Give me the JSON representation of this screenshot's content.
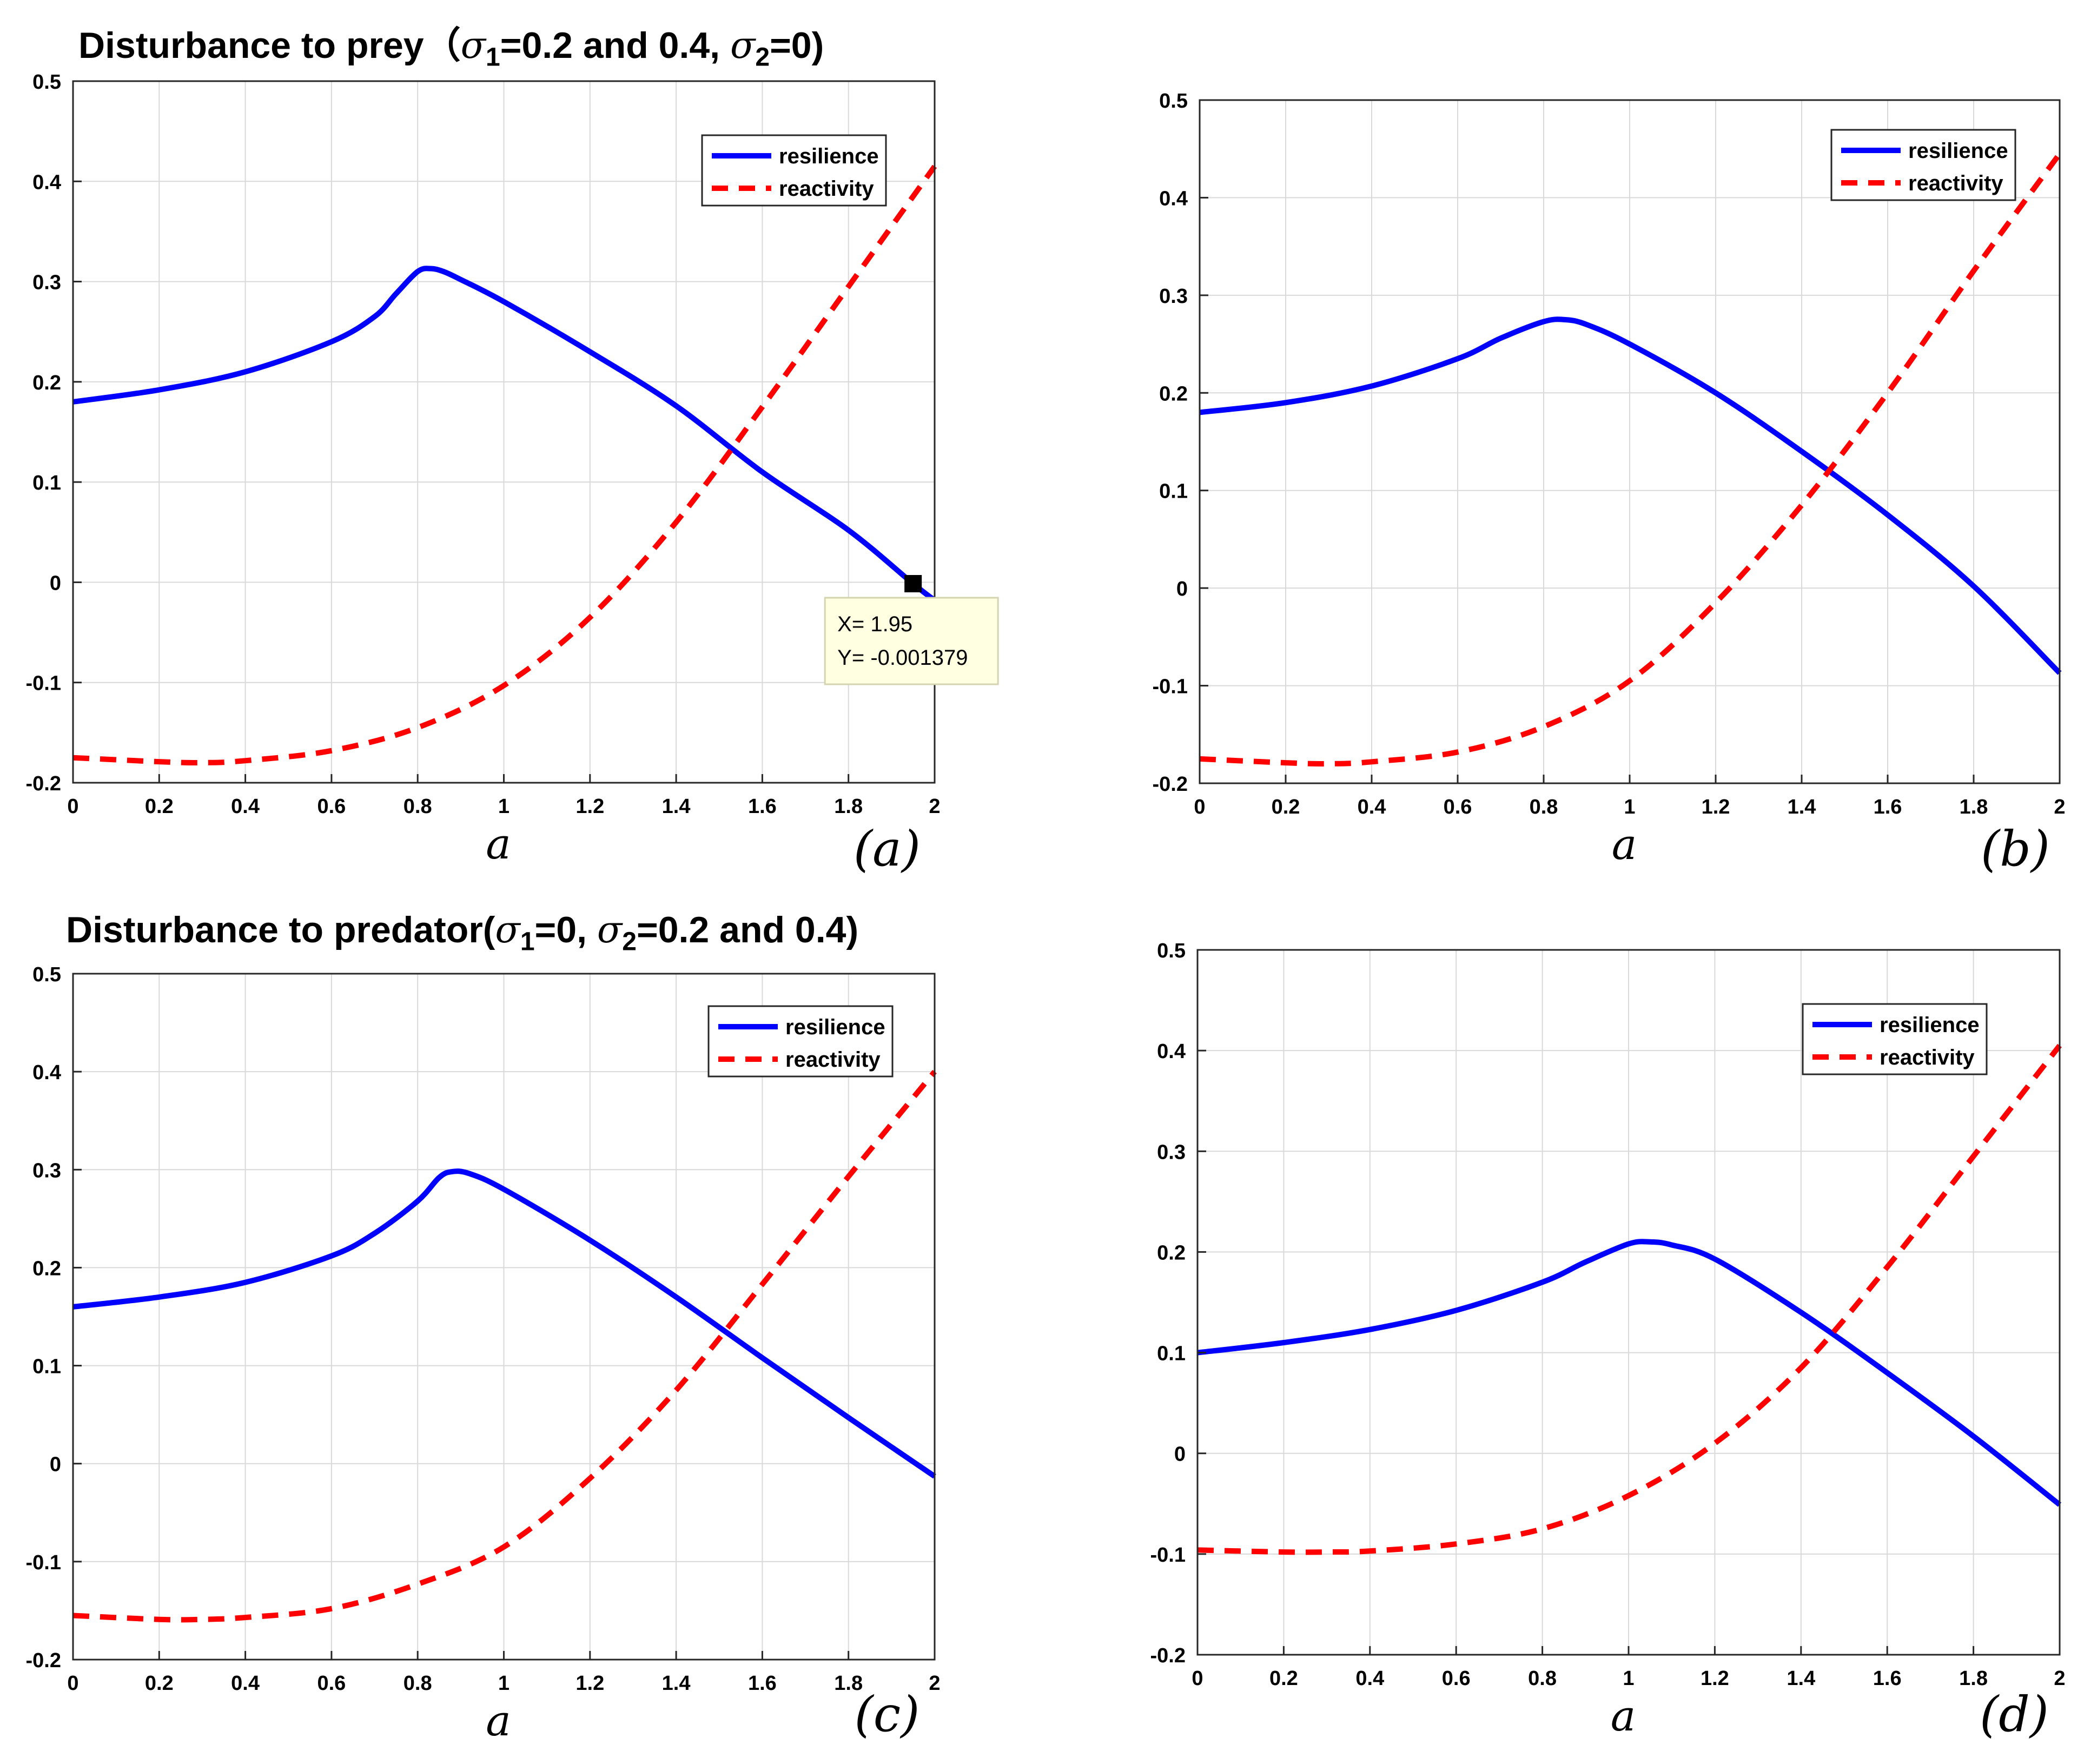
{
  "titles": {
    "prey": {
      "lead": "Disturbance to prey（",
      "sigma1": "1",
      "mid": "=0.2 and 0.4, ",
      "sigma2": "2",
      "tail": "=0)"
    },
    "predator": {
      "lead": "Disturbance to predator(",
      "sigma1": "1",
      "mid": "=0, ",
      "sigma2": "2",
      "tail": "=0.2 and 0.4)"
    },
    "sigma_symbol": "σ"
  },
  "colors": {
    "resilience": "#0000ff",
    "reactivity": "#ff0000",
    "grid": "#d9d9d9",
    "datatip_bg": "#ffffe1"
  },
  "chart_data": [
    {
      "type": "line",
      "panel_label": "(a)",
      "xlabel": "a",
      "ylabel": "",
      "xlim": [
        0,
        2
      ],
      "ylim": [
        -0.2,
        0.5
      ],
      "xticks": [
        "0",
        "0.2",
        "0.4",
        "0.6",
        "0.8",
        "1",
        "1.2",
        "1.4",
        "1.6",
        "1.8",
        "2"
      ],
      "yticks": [
        "-0.2",
        "-0.1",
        "0",
        "0.1",
        "0.2",
        "0.3",
        "0.4",
        "0.5"
      ],
      "legend": {
        "position": "top-right",
        "entries": [
          "resilience",
          "reactivity"
        ]
      },
      "series": [
        {
          "name": "resilience",
          "style": "solid",
          "x": [
            0,
            0.2,
            0.4,
            0.6,
            0.7,
            0.75,
            0.8,
            0.83,
            0.86,
            0.9,
            1.0,
            1.2,
            1.4,
            1.6,
            1.8,
            1.95,
            2.0
          ],
          "y": [
            0.18,
            0.192,
            0.21,
            0.24,
            0.265,
            0.288,
            0.31,
            0.313,
            0.31,
            0.302,
            0.28,
            0.23,
            0.176,
            0.11,
            0.052,
            -0.0014,
            -0.018
          ]
        },
        {
          "name": "reactivity",
          "style": "dashed",
          "x": [
            0,
            0.2,
            0.3,
            0.4,
            0.6,
            0.8,
            1.0,
            1.2,
            1.4,
            1.6,
            1.8,
            2.0
          ],
          "y": [
            -0.175,
            -0.179,
            -0.18,
            -0.178,
            -0.168,
            -0.145,
            -0.103,
            -0.035,
            0.06,
            0.175,
            0.295,
            0.415
          ]
        }
      ],
      "datatip": {
        "x": 1.95,
        "y": -0.001379,
        "line1": "X= 1.95",
        "line2": "Y= -0.001379"
      }
    },
    {
      "type": "line",
      "panel_label": "(b)",
      "xlabel": "a",
      "ylabel": "",
      "xlim": [
        0,
        2
      ],
      "ylim": [
        -0.2,
        0.5
      ],
      "xticks": [
        "0",
        "0.2",
        "0.4",
        "0.6",
        "0.8",
        "1",
        "1.2",
        "1.4",
        "1.6",
        "1.8",
        "2"
      ],
      "yticks": [
        "-0.2",
        "-0.1",
        "0",
        "0.1",
        "0.2",
        "0.3",
        "0.4",
        "0.5"
      ],
      "legend": {
        "position": "top-right",
        "entries": [
          "resilience",
          "reactivity"
        ]
      },
      "series": [
        {
          "name": "resilience",
          "style": "solid",
          "x": [
            0,
            0.2,
            0.4,
            0.6,
            0.7,
            0.8,
            0.85,
            0.9,
            1.0,
            1.2,
            1.4,
            1.6,
            1.8,
            2.0
          ],
          "y": [
            0.18,
            0.19,
            0.207,
            0.235,
            0.256,
            0.273,
            0.275,
            0.27,
            0.25,
            0.2,
            0.14,
            0.075,
            0.002,
            -0.087
          ]
        },
        {
          "name": "reactivity",
          "style": "dashed",
          "x": [
            0,
            0.2,
            0.3,
            0.4,
            0.6,
            0.8,
            1.0,
            1.2,
            1.4,
            1.6,
            1.8,
            2.0
          ],
          "y": [
            -0.175,
            -0.179,
            -0.18,
            -0.178,
            -0.168,
            -0.142,
            -0.095,
            -0.015,
            0.085,
            0.2,
            0.325,
            0.445
          ]
        }
      ]
    },
    {
      "type": "line",
      "panel_label": "(c)",
      "xlabel": "a",
      "ylabel": "",
      "xlim": [
        0,
        2
      ],
      "ylim": [
        -0.2,
        0.5
      ],
      "xticks": [
        "0",
        "0.2",
        "0.4",
        "0.6",
        "0.8",
        "1",
        "1.2",
        "1.4",
        "1.6",
        "1.8",
        "2"
      ],
      "yticks": [
        "-0.2",
        "-0.1",
        "0",
        "0.1",
        "0.2",
        "0.3",
        "0.4",
        "0.5"
      ],
      "legend": {
        "position": "top-right",
        "entries": [
          "resilience",
          "reactivity"
        ]
      },
      "series": [
        {
          "name": "resilience",
          "style": "solid",
          "x": [
            0,
            0.2,
            0.4,
            0.6,
            0.7,
            0.8,
            0.85,
            0.88,
            0.92,
            1.0,
            1.2,
            1.4,
            1.6,
            1.8,
            2.0
          ],
          "y": [
            0.16,
            0.17,
            0.185,
            0.212,
            0.235,
            0.268,
            0.292,
            0.298,
            0.296,
            0.28,
            0.228,
            0.17,
            0.108,
            0.047,
            -0.013
          ]
        },
        {
          "name": "reactivity",
          "style": "dashed",
          "x": [
            0,
            0.2,
            0.3,
            0.4,
            0.6,
            0.8,
            1.0,
            1.2,
            1.4,
            1.6,
            1.8,
            2.0
          ],
          "y": [
            -0.155,
            -0.159,
            -0.159,
            -0.157,
            -0.148,
            -0.123,
            -0.085,
            -0.015,
            0.075,
            0.183,
            0.293,
            0.4
          ]
        }
      ]
    },
    {
      "type": "line",
      "panel_label": "(d)",
      "xlabel": "a",
      "ylabel": "",
      "xlim": [
        0,
        2
      ],
      "ylim": [
        -0.2,
        0.5
      ],
      "xticks": [
        "0",
        "0.2",
        "0.4",
        "0.6",
        "0.8",
        "1",
        "1.2",
        "1.4",
        "1.6",
        "1.8",
        "2"
      ],
      "yticks": [
        "-0.2",
        "-0.1",
        "0",
        "0.1",
        "0.2",
        "0.3",
        "0.4",
        "0.5"
      ],
      "legend": {
        "position": "top-right",
        "entries": [
          "resilience",
          "reactivity"
        ]
      },
      "series": [
        {
          "name": "resilience",
          "style": "solid",
          "x": [
            0,
            0.2,
            0.4,
            0.6,
            0.8,
            0.9,
            1.0,
            1.05,
            1.1,
            1.2,
            1.4,
            1.6,
            1.8,
            2.0
          ],
          "y": [
            0.1,
            0.11,
            0.123,
            0.142,
            0.17,
            0.19,
            0.208,
            0.21,
            0.207,
            0.193,
            0.14,
            0.08,
            0.017,
            -0.051
          ]
        },
        {
          "name": "reactivity",
          "style": "dashed",
          "x": [
            0,
            0.2,
            0.3,
            0.4,
            0.6,
            0.8,
            1.0,
            1.2,
            1.4,
            1.6,
            1.8,
            2.0
          ],
          "y": [
            -0.096,
            -0.098,
            -0.098,
            -0.097,
            -0.09,
            -0.075,
            -0.042,
            0.01,
            0.085,
            0.185,
            0.295,
            0.405
          ]
        }
      ]
    }
  ]
}
